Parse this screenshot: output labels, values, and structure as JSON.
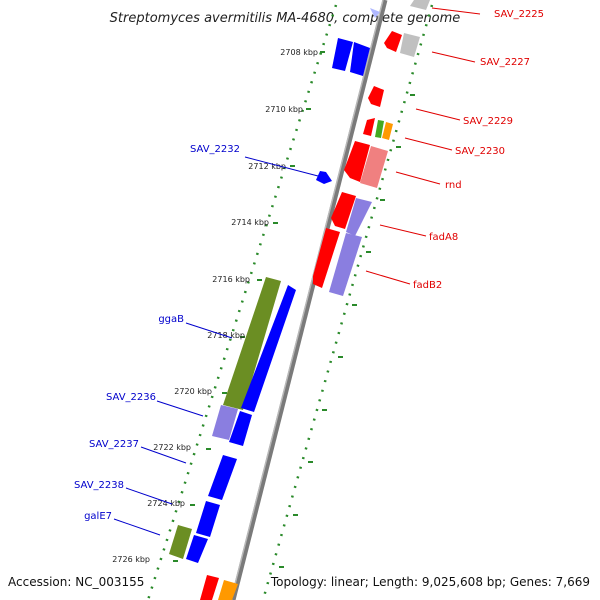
{
  "title": "Streptomyces avermitilis MA-4680, complete genome",
  "footer": {
    "accession": "Accession: NC_003155",
    "summary": "Topology: linear; Length: 9,025,608 bp; Genes: 7,669"
  },
  "colors": {
    "forward_gene": "#ff0000",
    "reverse_gene": "#0000ff",
    "ruler_tick": "#2a8a2a",
    "backbone": "#888888",
    "label_right": "#e00000",
    "label_left": "#0000cc"
  },
  "ruler_labels": [
    "2708 kbp",
    "2710 kbp",
    "2712 kbp",
    "2714 kbp",
    "2716 kbp",
    "2718 kbp",
    "2720 kbp",
    "2722 kbp",
    "2724 kbp",
    "2726 kbp"
  ],
  "right_labels": [
    "SAV_2225",
    "SAV_2227",
    "SAV_2229",
    "SAV_2230",
    "rnd",
    "fadA8",
    "fadB2"
  ],
  "left_labels": [
    "SAV_2232",
    "ggaB",
    "SAV_2236",
    "SAV_2237",
    "SAV_2238",
    "galE7"
  ]
}
